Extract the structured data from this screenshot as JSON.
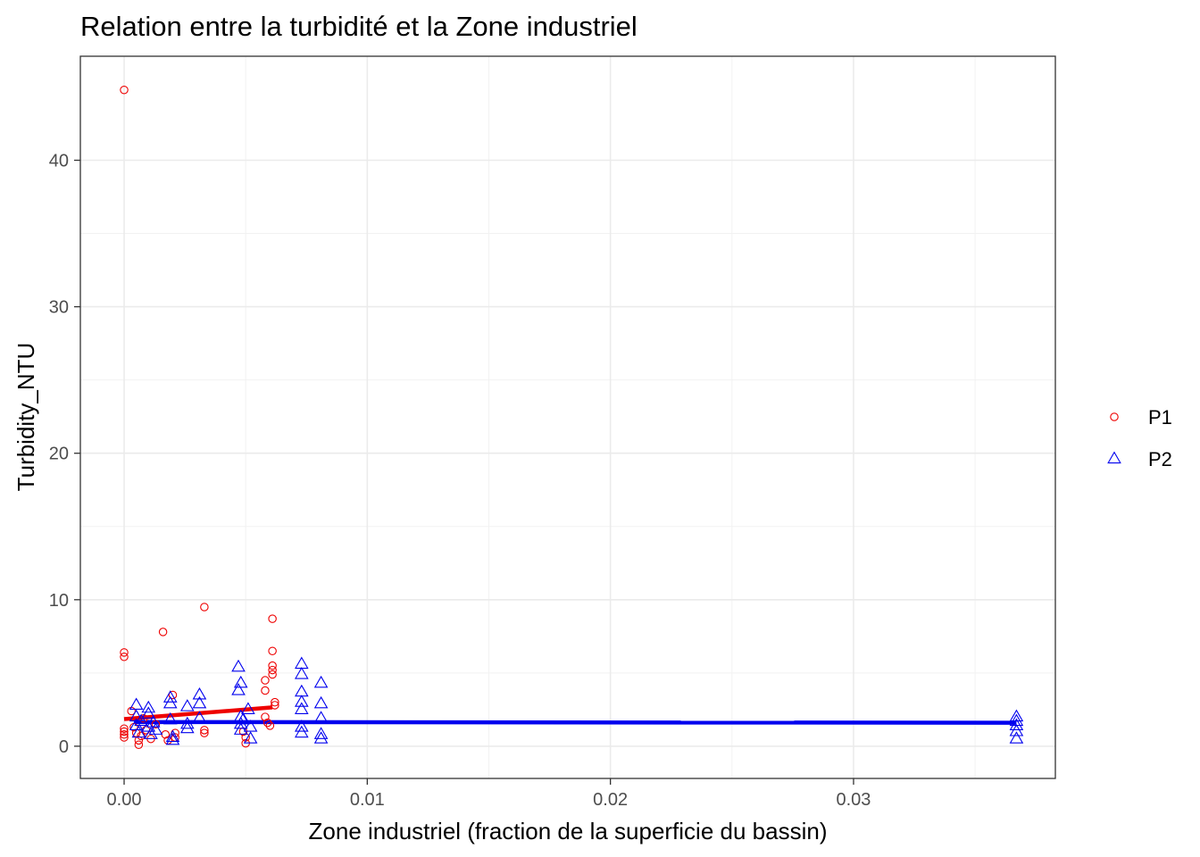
{
  "chart_data": {
    "type": "scatter",
    "title": "Relation entre la turbidité et la Zone industriel",
    "xlabel": "Zone industriel (fraction de la superficie du bassin)",
    "ylabel": "Turbidity_NTU",
    "xlim": [
      -0.0018,
      0.0383
    ],
    "ylim": [
      -2.2,
      47.1
    ],
    "x_ticks": [
      0.0,
      0.01,
      0.02,
      0.03
    ],
    "x_tick_labels": [
      "0.00",
      "0.01",
      "0.02",
      "0.03"
    ],
    "y_ticks": [
      0,
      10,
      20,
      30,
      40
    ],
    "y_tick_labels": [
      "0",
      "10",
      "20",
      "30",
      "40"
    ],
    "grid": true,
    "legend_position": "right",
    "series": [
      {
        "name": "P1",
        "color": "#ee0000",
        "shape": "circle",
        "points": [
          [
            0.0,
            44.8
          ],
          [
            0.0,
            6.4
          ],
          [
            0.0,
            6.1
          ],
          [
            0.0,
            1.2
          ],
          [
            0.0,
            1.0
          ],
          [
            0.0,
            0.8
          ],
          [
            0.0,
            0.6
          ],
          [
            0.0003,
            2.4
          ],
          [
            0.0004,
            1.3
          ],
          [
            0.0005,
            0.9
          ],
          [
            0.0006,
            0.4
          ],
          [
            0.0006,
            0.1
          ],
          [
            0.0007,
            0.7
          ],
          [
            0.0008,
            1.9
          ],
          [
            0.0009,
            1.1
          ],
          [
            0.0011,
            0.5
          ],
          [
            0.0013,
            1.5
          ],
          [
            0.0016,
            7.8
          ],
          [
            0.0017,
            0.8
          ],
          [
            0.0018,
            0.4
          ],
          [
            0.002,
            3.5
          ],
          [
            0.0021,
            0.9
          ],
          [
            0.0021,
            0.6
          ],
          [
            0.0033,
            9.5
          ],
          [
            0.0033,
            1.1
          ],
          [
            0.0033,
            0.9
          ],
          [
            0.0049,
            1.0
          ],
          [
            0.005,
            0.6
          ],
          [
            0.005,
            0.2
          ],
          [
            0.0058,
            4.5
          ],
          [
            0.0058,
            3.8
          ],
          [
            0.0058,
            2.0
          ],
          [
            0.0059,
            1.6
          ],
          [
            0.006,
            1.4
          ],
          [
            0.0061,
            8.7
          ],
          [
            0.0061,
            6.5
          ],
          [
            0.0061,
            5.5
          ],
          [
            0.0061,
            5.2
          ],
          [
            0.0061,
            4.9
          ],
          [
            0.0062,
            3.0
          ],
          [
            0.0062,
            2.8
          ]
        ],
        "trend": [
          [
            0.0,
            1.85
          ],
          [
            0.0061,
            2.65
          ]
        ]
      },
      {
        "name": "P2",
        "color": "#0000ee",
        "shape": "triangle",
        "points": [
          [
            0.0005,
            2.8
          ],
          [
            0.0005,
            2.0
          ],
          [
            0.0005,
            1.4
          ],
          [
            0.0006,
            0.9
          ],
          [
            0.0007,
            1.7
          ],
          [
            0.001,
            2.6
          ],
          [
            0.001,
            2.2
          ],
          [
            0.001,
            1.3
          ],
          [
            0.0011,
            0.8
          ],
          [
            0.0012,
            1.6
          ],
          [
            0.0013,
            1.1
          ],
          [
            0.0019,
            3.3
          ],
          [
            0.0019,
            2.9
          ],
          [
            0.0019,
            1.8
          ],
          [
            0.002,
            0.6
          ],
          [
            0.002,
            0.4
          ],
          [
            0.0026,
            2.7
          ],
          [
            0.0026,
            1.5
          ],
          [
            0.0026,
            1.2
          ],
          [
            0.0031,
            3.5
          ],
          [
            0.0031,
            2.9
          ],
          [
            0.0031,
            1.9
          ],
          [
            0.0047,
            5.4
          ],
          [
            0.0047,
            3.8
          ],
          [
            0.0048,
            4.3
          ],
          [
            0.0048,
            2.0
          ],
          [
            0.0048,
            1.5
          ],
          [
            0.0048,
            1.1
          ],
          [
            0.0049,
            1.8
          ],
          [
            0.0051,
            2.5
          ],
          [
            0.0052,
            1.3
          ],
          [
            0.0052,
            0.5
          ],
          [
            0.0073,
            5.6
          ],
          [
            0.0073,
            4.9
          ],
          [
            0.0073,
            3.7
          ],
          [
            0.0073,
            3.0
          ],
          [
            0.0073,
            2.5
          ],
          [
            0.0073,
            1.3
          ],
          [
            0.0073,
            0.9
          ],
          [
            0.0081,
            4.3
          ],
          [
            0.0081,
            2.9
          ],
          [
            0.0081,
            1.9
          ],
          [
            0.0081,
            0.8
          ],
          [
            0.0081,
            0.5
          ],
          [
            0.0367,
            2.0
          ],
          [
            0.0367,
            1.7
          ],
          [
            0.0367,
            1.4
          ],
          [
            0.0367,
            1.0
          ],
          [
            0.0367,
            0.5
          ]
        ],
        "trend": [
          [
            0.0004,
            1.65
          ],
          [
            0.0367,
            1.6
          ]
        ]
      }
    ]
  }
}
